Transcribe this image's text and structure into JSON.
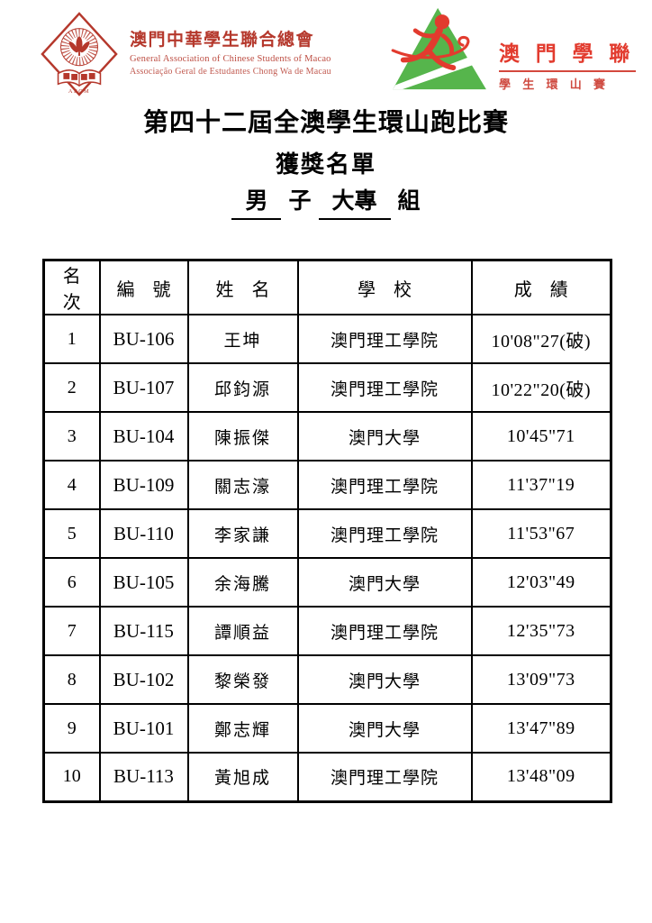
{
  "colors": {
    "logo_left_red": "#b5382c",
    "logo_right_red": "#e23b2e",
    "logo_right_red_soft": "#cf4a40",
    "triangle_green": "#56b54c",
    "text_black": "#000000",
    "page_bg": "#ffffff"
  },
  "logo_left": {
    "org_zh": "澳門中華學生聯合總會",
    "org_en": "General Association of Chinese Students of Macao",
    "org_pt": "Associação Geral de Estudantes Chong Wa de Macau",
    "emblem_text": "AECM"
  },
  "logo_right": {
    "title": "澳 門 學 聯",
    "subtitle": "學 生 環 山 賽"
  },
  "heading": {
    "title": "第四十二屆全澳學生環山跑比賽",
    "subtitle": "獲獎名單",
    "group": {
      "underlined_1": "男",
      "plain_1": "子",
      "underlined_2": "大專",
      "suffix": "組"
    }
  },
  "table": {
    "headers": [
      "名　次",
      "編　號",
      "姓　名",
      "學　校",
      "成　績"
    ],
    "rows": [
      [
        "1",
        "BU-106",
        "王坤",
        "澳門理工學院",
        "10'08\"27(破)"
      ],
      [
        "2",
        "BU-107",
        "邱鈞源",
        "澳門理工學院",
        "10'22\"20(破)"
      ],
      [
        "3",
        "BU-104",
        "陳振傑",
        "澳門大學",
        "10'45\"71"
      ],
      [
        "4",
        "BU-109",
        "關志濠",
        "澳門理工學院",
        "11'37\"19"
      ],
      [
        "5",
        "BU-110",
        "李家謙",
        "澳門理工學院",
        "11'53\"67"
      ],
      [
        "6",
        "BU-105",
        "余海騰",
        "澳門大學",
        "12'03\"49"
      ],
      [
        "7",
        "BU-115",
        "譚順益",
        "澳門理工學院",
        "12'35\"73"
      ],
      [
        "8",
        "BU-102",
        "黎榮發",
        "澳門大學",
        "13'09\"73"
      ],
      [
        "9",
        "BU-101",
        "鄭志輝",
        "澳門大學",
        "13'47\"89"
      ],
      [
        "10",
        "BU-113",
        "黃旭成",
        "澳門理工學院",
        "13'48\"09"
      ]
    ]
  }
}
